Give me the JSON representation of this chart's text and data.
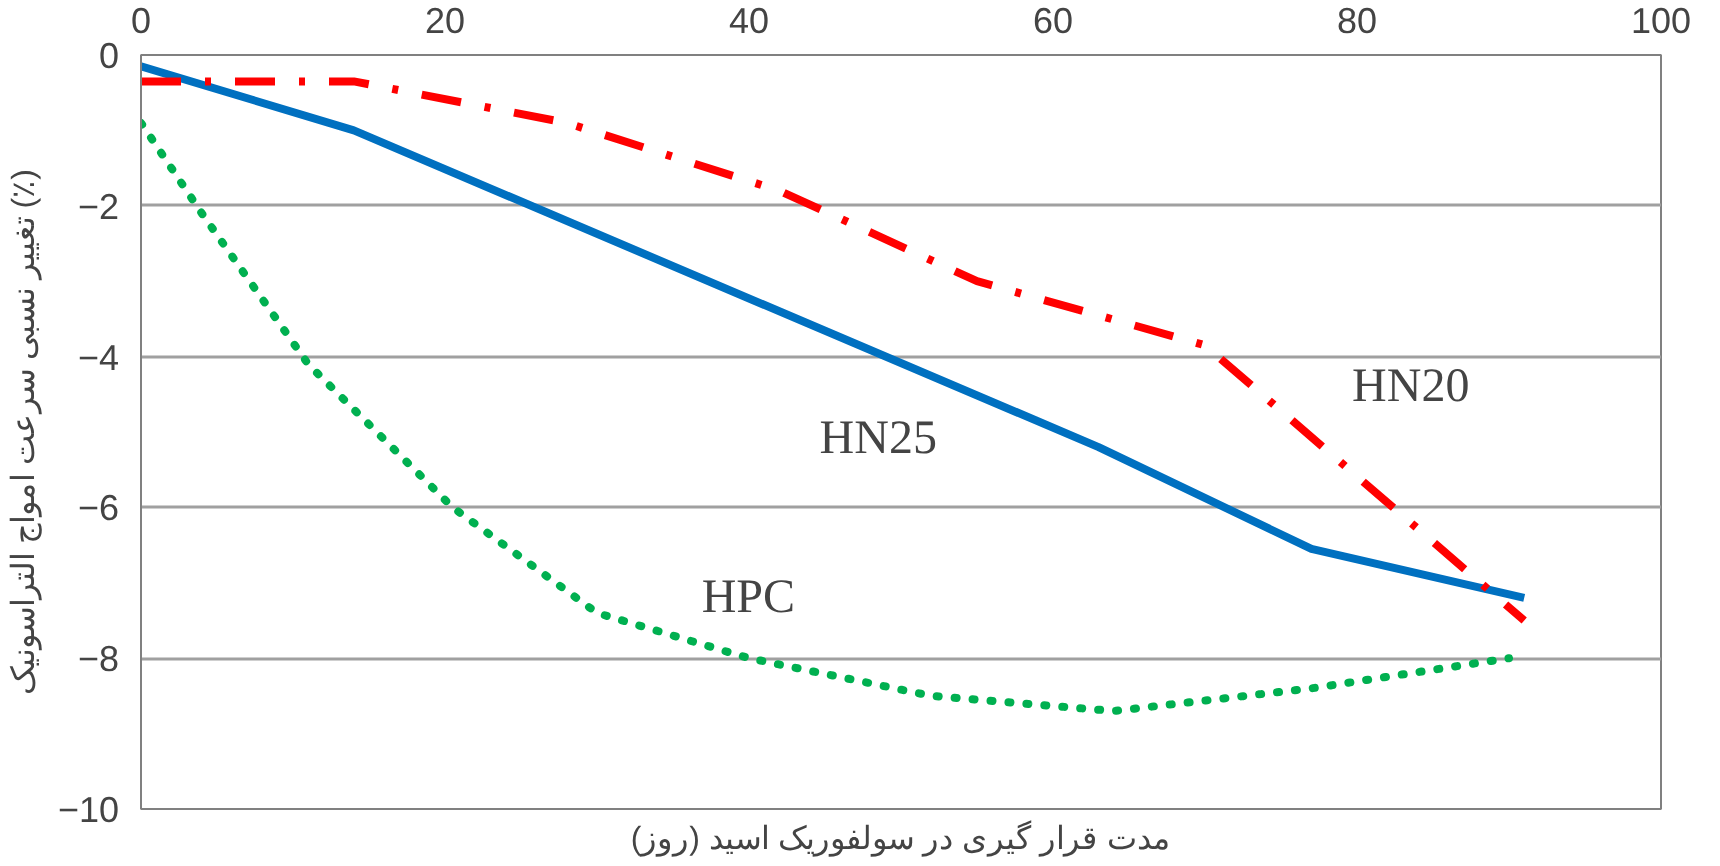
{
  "chart_data": {
    "type": "line",
    "xlabel": "مدت قرار گیری در سولفوریک اسید (روز)",
    "ylabel": "تغییر نسبی سرعت امواج التراسونیک (٪)",
    "xlim": [
      0,
      100
    ],
    "xticks": [
      0,
      20,
      40,
      60,
      80,
      100
    ],
    "ylim": [
      -10,
      0
    ],
    "yticks": [
      -10,
      -8,
      -6,
      -4,
      -2,
      0
    ],
    "grid": "y",
    "series": [
      {
        "name": "HN25",
        "color": "#0070c0",
        "line_style": "solid",
        "x": [
          0,
          14,
          63,
          77,
          91
        ],
        "values": [
          -0.15,
          -1.0,
          -5.2,
          -6.55,
          -7.2
        ]
      },
      {
        "name": "HN20",
        "color": "#ff0000",
        "line_style": "dashed",
        "x": [
          0,
          14,
          28,
          42,
          55,
          70,
          91
        ],
        "values": [
          -0.35,
          -0.35,
          -0.9,
          -1.8,
          -3.0,
          -3.85,
          -7.5
        ]
      },
      {
        "name": "HPC",
        "color": "#00b050",
        "line_style": "dotted",
        "x": [
          0,
          4,
          11,
          20.5,
          30,
          40,
          52,
          64,
          77,
          90
        ],
        "values": [
          -0.9,
          -2.1,
          -4.1,
          -6.0,
          -7.4,
          -8.0,
          -8.5,
          -8.7,
          -8.4,
          -8.0
        ]
      }
    ]
  }
}
